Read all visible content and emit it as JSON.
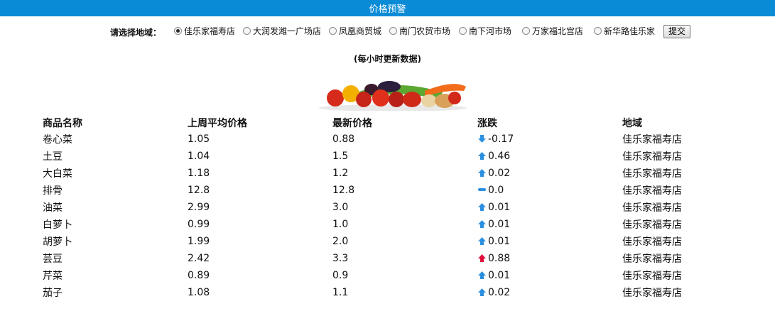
{
  "header": {
    "title": "价格预警"
  },
  "selector": {
    "prompt": "请选择地域：",
    "options": [
      {
        "label": "佳乐家福寿店",
        "checked": true
      },
      {
        "label": "大润发潍一广场店",
        "checked": false
      },
      {
        "label": "凤凰商贸城",
        "checked": false
      },
      {
        "label": "南门农贸市场",
        "checked": false
      },
      {
        "label": "南下河市场",
        "checked": false
      },
      {
        "label": "万家福北宫店",
        "checked": false
      },
      {
        "label": "新华路佳乐家",
        "checked": false
      }
    ],
    "submit_label": "提交"
  },
  "note": "(每小时更新数据)",
  "table": {
    "headers": [
      "商品名称",
      "上周平均价格",
      "最新价格",
      "涨跌",
      "地域"
    ],
    "rows": [
      {
        "name": "卷心菜",
        "last_week": "1.05",
        "latest": "0.88",
        "change": "-0.17",
        "trend": "down",
        "region": "佳乐家福寿店"
      },
      {
        "name": "土豆",
        "last_week": "1.04",
        "latest": "1.5",
        "change": "0.46",
        "trend": "up",
        "region": "佳乐家福寿店"
      },
      {
        "name": "大白菜",
        "last_week": "1.18",
        "latest": "1.2",
        "change": "0.02",
        "trend": "up",
        "region": "佳乐家福寿店"
      },
      {
        "name": "排骨",
        "last_week": "12.8",
        "latest": "12.8",
        "change": "0.0",
        "trend": "flat",
        "region": "佳乐家福寿店"
      },
      {
        "name": "油菜",
        "last_week": "2.99",
        "latest": "3.0",
        "change": "0.01",
        "trend": "up",
        "region": "佳乐家福寿店"
      },
      {
        "name": "白萝卜",
        "last_week": "0.99",
        "latest": "1.0",
        "change": "0.01",
        "trend": "up",
        "region": "佳乐家福寿店"
      },
      {
        "name": "胡萝卜",
        "last_week": "1.99",
        "latest": "2.0",
        "change": "0.01",
        "trend": "up",
        "region": "佳乐家福寿店"
      },
      {
        "name": "芸豆",
        "last_week": "2.42",
        "latest": "3.3",
        "change": "0.88",
        "trend": "up-high",
        "region": "佳乐家福寿店"
      },
      {
        "name": "芹菜",
        "last_week": "0.89",
        "latest": "0.9",
        "change": "0.01",
        "trend": "up",
        "region": "佳乐家福寿店"
      },
      {
        "name": "茄子",
        "last_week": "1.08",
        "latest": "1.1",
        "change": "0.02",
        "trend": "up",
        "region": "佳乐家福寿店"
      }
    ]
  },
  "colors": {
    "header_bg": "#0a8bd6",
    "arrow_blue": "#2b8fe0",
    "arrow_red": "#e0103a"
  }
}
